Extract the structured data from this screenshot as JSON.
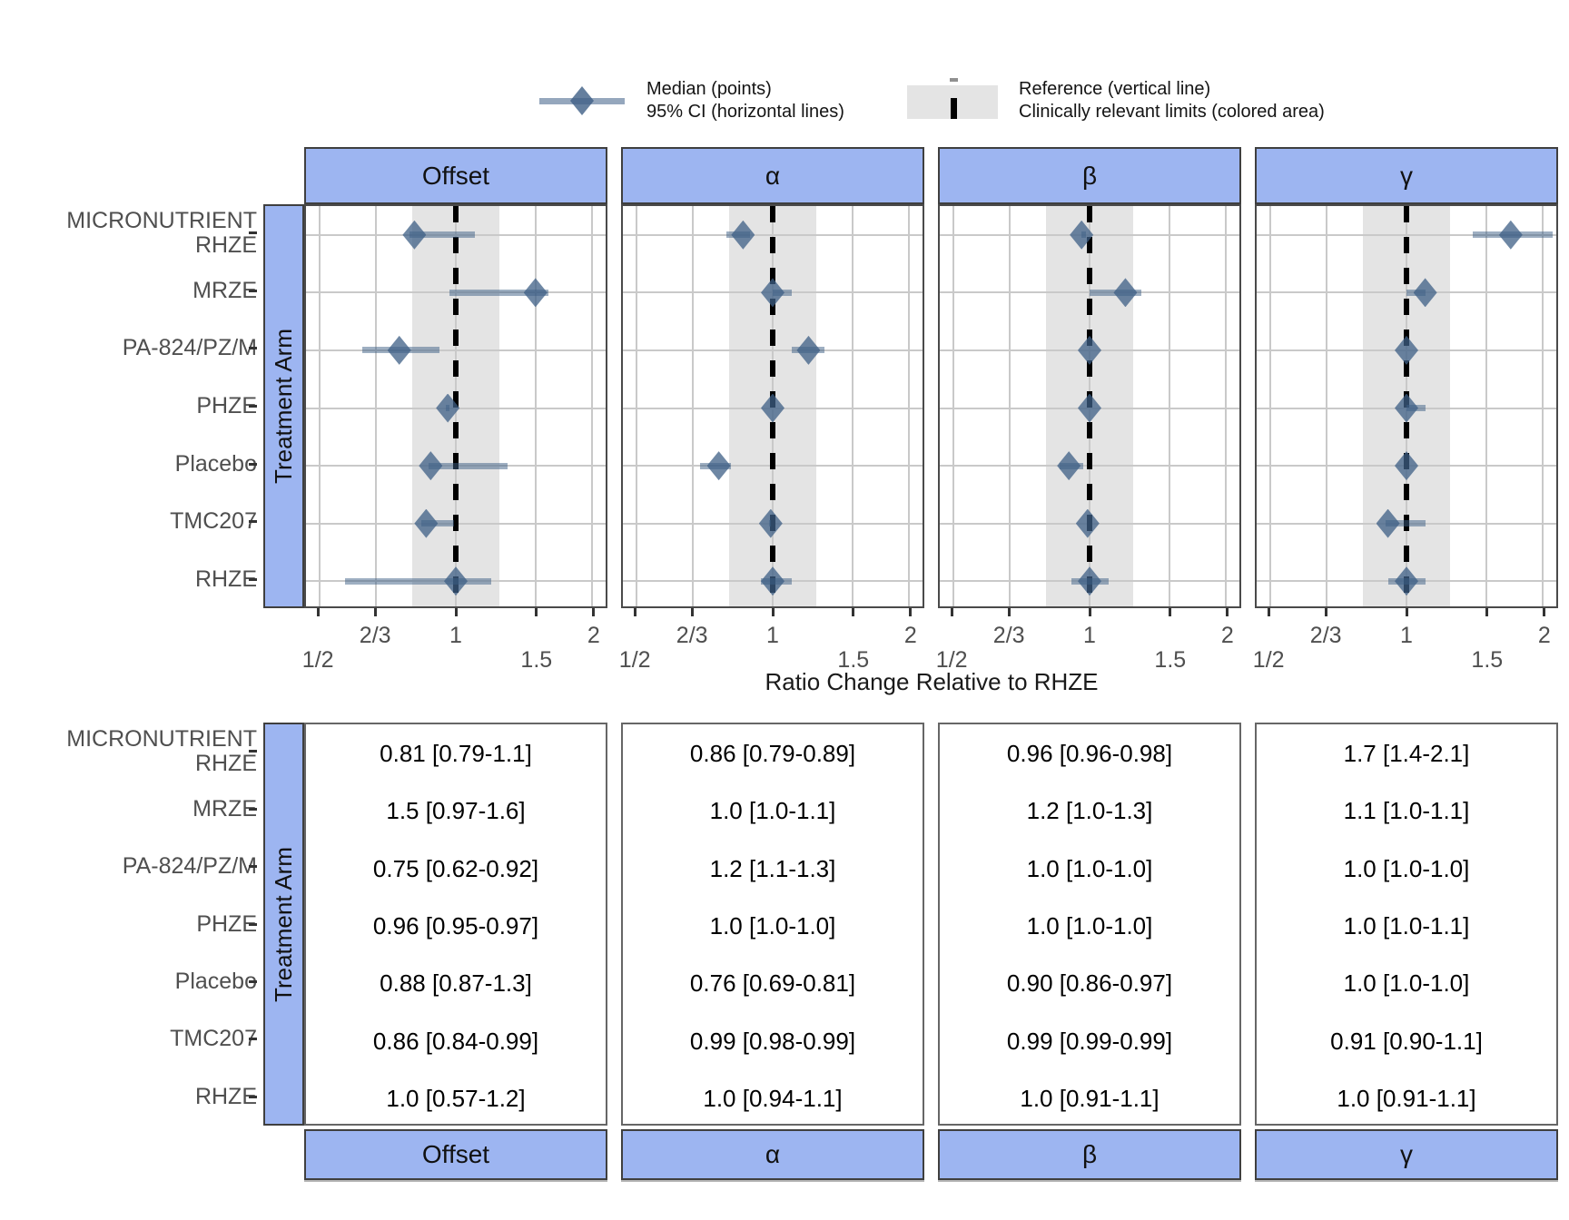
{
  "legend": {
    "median_label": "Median (points)",
    "ci_label": "95% CI (horizontal lines)",
    "reference_label": "Reference (vertical line)",
    "limits_label": "Clinically relevant limits (colored area)"
  },
  "axes": {
    "x_title": "Ratio Change Relative to RHZE",
    "y_title": "Treatment Arm",
    "x_tick_row1": [
      "2/3",
      "1",
      "2"
    ],
    "x_tick_row2": [
      "1/2",
      "1.5"
    ]
  },
  "colors": {
    "strip_fill": "#9db5f1",
    "band_fill": "#e4e4e4",
    "grid": "#c9c9c9",
    "diamond": "rgba(62,95,134,0.75)",
    "ci_line": "rgba(62,95,134,0.5)",
    "reference": "#000000",
    "label_text": "#4f4f4f",
    "panel_border": "#4a4a4a"
  },
  "chart_data": {
    "type": "forest",
    "x_scale": "log2",
    "x_domain": [
      0.5,
      2
    ],
    "x_expansion": 0.05,
    "reference_value": 1,
    "clinical_limits": [
      0.8,
      1.25
    ],
    "xlabel": "Ratio Change Relative to RHZE",
    "ylabel": "Treatment Arm",
    "x_breaks": [
      {
        "v": 0.5,
        "label": "1/2",
        "row": 2
      },
      {
        "v": 0.6667,
        "label": "2/3",
        "row": 1
      },
      {
        "v": 1,
        "label": "1",
        "row": 1
      },
      {
        "v": 1.5,
        "label": "1.5",
        "row": 2
      },
      {
        "v": 2,
        "label": "2",
        "row": 1
      }
    ],
    "arms": [
      {
        "label_lines": [
          "MICRONUTRIENT",
          "RHZE"
        ]
      },
      {
        "label_lines": [
          "MRZE"
        ]
      },
      {
        "label_lines": [
          "PA-824/PZ/M"
        ]
      },
      {
        "label_lines": [
          "PHZE"
        ]
      },
      {
        "label_lines": [
          "Placebo"
        ]
      },
      {
        "label_lines": [
          "TMC207"
        ]
      },
      {
        "label_lines": [
          "RHZE"
        ]
      }
    ],
    "facets": [
      {
        "name": "Offset",
        "estimates": [
          {
            "median": 0.81,
            "lo": 0.79,
            "hi": 1.1,
            "text": "0.81 [0.79-1.1]"
          },
          {
            "median": 1.5,
            "lo": 0.97,
            "hi": 1.6,
            "text": "1.5 [0.97-1.6]"
          },
          {
            "median": 0.75,
            "lo": 0.62,
            "hi": 0.92,
            "text": "0.75 [0.62-0.92]"
          },
          {
            "median": 0.96,
            "lo": 0.95,
            "hi": 0.97,
            "text": "0.96 [0.95-0.97]"
          },
          {
            "median": 0.88,
            "lo": 0.87,
            "hi": 1.3,
            "text": "0.88 [0.87-1.3]"
          },
          {
            "median": 0.86,
            "lo": 0.84,
            "hi": 0.99,
            "text": "0.86 [0.84-0.99]"
          },
          {
            "median": 1.0,
            "lo": 0.57,
            "hi": 1.2,
            "text": "1.0 [0.57-1.2]"
          }
        ]
      },
      {
        "name": "α",
        "estimates": [
          {
            "median": 0.86,
            "lo": 0.79,
            "hi": 0.89,
            "text": "0.86 [0.79-0.89]"
          },
          {
            "median": 1.0,
            "lo": 1.0,
            "hi": 1.1,
            "text": "1.0 [1.0-1.1]"
          },
          {
            "median": 1.2,
            "lo": 1.1,
            "hi": 1.3,
            "text": "1.2 [1.1-1.3]"
          },
          {
            "median": 1.0,
            "lo": 1.0,
            "hi": 1.0,
            "text": "1.0 [1.0-1.0]"
          },
          {
            "median": 0.76,
            "lo": 0.69,
            "hi": 0.81,
            "text": "0.76 [0.69-0.81]"
          },
          {
            "median": 0.99,
            "lo": 0.98,
            "hi": 0.99,
            "text": "0.99 [0.98-0.99]"
          },
          {
            "median": 1.0,
            "lo": 0.94,
            "hi": 1.1,
            "text": "1.0 [0.94-1.1]"
          }
        ]
      },
      {
        "name": "β",
        "estimates": [
          {
            "median": 0.96,
            "lo": 0.96,
            "hi": 0.98,
            "text": "0.96 [0.96-0.98]"
          },
          {
            "median": 1.2,
            "lo": 1.0,
            "hi": 1.3,
            "text": "1.2 [1.0-1.3]"
          },
          {
            "median": 1.0,
            "lo": 1.0,
            "hi": 1.0,
            "text": "1.0 [1.0-1.0]"
          },
          {
            "median": 1.0,
            "lo": 1.0,
            "hi": 1.0,
            "text": "1.0 [1.0-1.0]"
          },
          {
            "median": 0.9,
            "lo": 0.86,
            "hi": 0.97,
            "text": "0.90 [0.86-0.97]"
          },
          {
            "median": 0.99,
            "lo": 0.99,
            "hi": 0.99,
            "text": "0.99 [0.99-0.99]"
          },
          {
            "median": 1.0,
            "lo": 0.91,
            "hi": 1.1,
            "text": "1.0 [0.91-1.1]"
          }
        ]
      },
      {
        "name": "γ",
        "estimates": [
          {
            "median": 1.7,
            "lo": 1.4,
            "hi": 2.1,
            "text": "1.7 [1.4-2.1]"
          },
          {
            "median": 1.1,
            "lo": 1.0,
            "hi": 1.1,
            "text": "1.1 [1.0-1.1]"
          },
          {
            "median": 1.0,
            "lo": 1.0,
            "hi": 1.0,
            "text": "1.0 [1.0-1.0]"
          },
          {
            "median": 1.0,
            "lo": 1.0,
            "hi": 1.1,
            "text": "1.0 [1.0-1.1]"
          },
          {
            "median": 1.0,
            "lo": 1.0,
            "hi": 1.0,
            "text": "1.0 [1.0-1.0]"
          },
          {
            "median": 0.91,
            "lo": 0.9,
            "hi": 1.1,
            "text": "0.91 [0.90-1.1]"
          },
          {
            "median": 1.0,
            "lo": 0.91,
            "hi": 1.1,
            "text": "1.0 [0.91-1.1]"
          }
        ]
      }
    ]
  }
}
